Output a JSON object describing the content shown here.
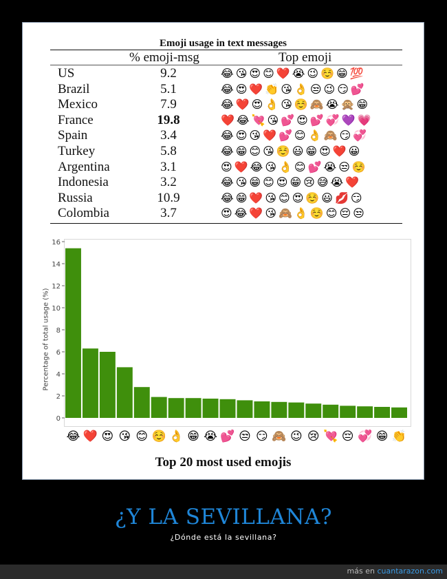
{
  "table": {
    "title": "Emoji usage in text messages",
    "headers": {
      "pct": "% emoji-msg",
      "top": "Top emoji"
    },
    "rows": [
      {
        "country": "US",
        "pct": "9.2",
        "bold": false,
        "emojis": [
          "😂",
          "😘",
          "😍",
          "😊",
          "❤️",
          "😭",
          "😉",
          "☺️",
          "😁",
          "💯"
        ]
      },
      {
        "country": "Brazil",
        "pct": "5.1",
        "bold": false,
        "emojis": [
          "😂",
          "😍",
          "❤️",
          "👏",
          "😘",
          "👌",
          "😒",
          "😉",
          "😏",
          "💕"
        ]
      },
      {
        "country": "Mexico",
        "pct": "7.9",
        "bold": false,
        "emojis": [
          "😂",
          "❤️",
          "😍",
          "👌",
          "😘",
          "☺️",
          "🙈",
          "😭",
          "🙊",
          "😁"
        ]
      },
      {
        "country": "France",
        "pct": "19.8",
        "bold": true,
        "emojis": [
          "❤️",
          "😂",
          "💘",
          "😘",
          "💕",
          "😍",
          "💕",
          "💞",
          "💜",
          "💗"
        ]
      },
      {
        "country": "Spain",
        "pct": "3.4",
        "bold": false,
        "emojis": [
          "😂",
          "😍",
          "😘",
          "❤️",
          "💕",
          "😊",
          "👌",
          "🙈",
          "😏",
          "💞"
        ]
      },
      {
        "country": "Turkey",
        "pct": "5.8",
        "bold": false,
        "emojis": [
          "😂",
          "😁",
          "😊",
          "😘",
          "☺️",
          "😃",
          "😁",
          "😍",
          "❤️",
          "😀"
        ]
      },
      {
        "country": "Argentina",
        "pct": "3.1",
        "bold": false,
        "emojis": [
          "😍",
          "❤️",
          "😂",
          "😘",
          "👌",
          "😊",
          "💕",
          "😭",
          "😒",
          "☺️"
        ]
      },
      {
        "country": "Indonesia",
        "pct": "3.2",
        "bold": false,
        "emojis": [
          "😂",
          "😘",
          "😁",
          "😊",
          "😍",
          "😁",
          "😢",
          "😅",
          "😭",
          "❤️"
        ]
      },
      {
        "country": "Russia",
        "pct": "10.9",
        "bold": false,
        "emojis": [
          "😂",
          "😁",
          "❤️",
          "😘",
          "😊",
          "😍",
          "☺️",
          "😃",
          "💋",
          "😏"
        ]
      },
      {
        "country": "Colombia",
        "pct": "3.7",
        "bold": false,
        "emojis": [
          "😍",
          "😂",
          "❤️",
          "😘",
          "🙈",
          "👌",
          "☺️",
          "😊",
          "😔",
          "😒"
        ]
      }
    ]
  },
  "chart_data": {
    "type": "bar",
    "title": "Top 20 most used emojis",
    "ylabel": "Percentage of total usage (%)",
    "xlabel": "",
    "ylim": [
      0,
      16
    ],
    "yticks": [
      0,
      2,
      4,
      6,
      8,
      10,
      12,
      14,
      16
    ],
    "bar_color": "#3f8f0c",
    "grid": false,
    "categories": [
      "😂",
      "❤️",
      "😍",
      "😘",
      "😊",
      "☺️",
      "👌",
      "😁",
      "😭",
      "💕",
      "😒",
      "😏",
      "🙈",
      "😉",
      "😢",
      "💘",
      "😔",
      "💞",
      "😁",
      "👏"
    ],
    "values": [
      15.4,
      6.3,
      6.0,
      4.6,
      2.8,
      1.9,
      1.8,
      1.8,
      1.75,
      1.7,
      1.6,
      1.5,
      1.45,
      1.4,
      1.3,
      1.2,
      1.1,
      1.05,
      1.0,
      0.95
    ]
  },
  "caption": {
    "title": "¿Y LA SEVILLANA?",
    "subtitle": "¿Dónde está la sevillana?"
  },
  "footer": {
    "prefix": "más en",
    "site": "cuantarazon.com"
  }
}
